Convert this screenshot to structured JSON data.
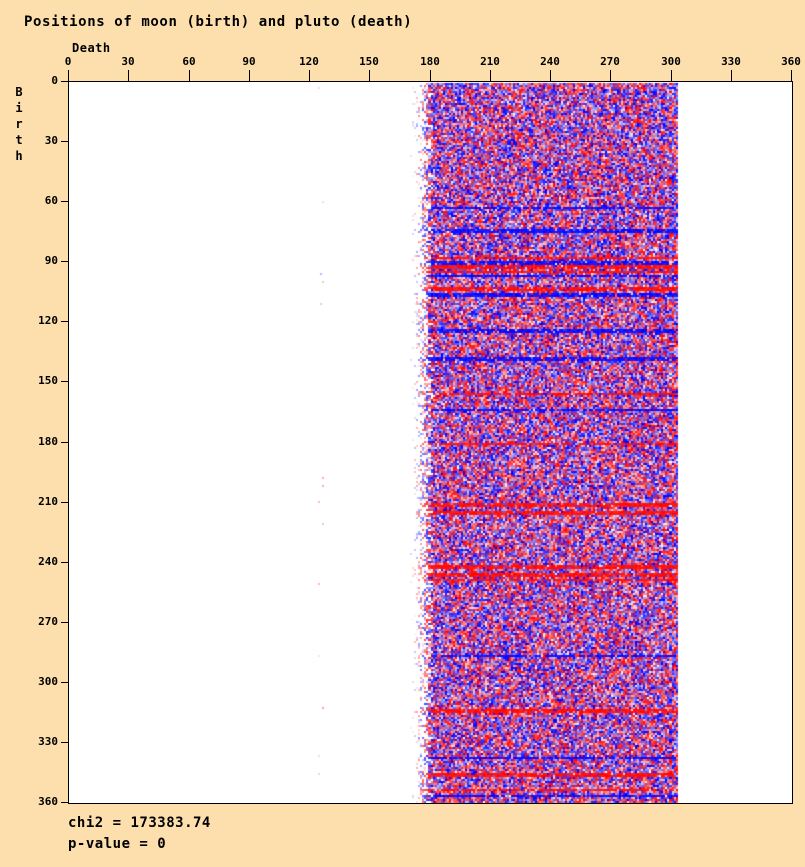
{
  "window": {
    "background": "#FCDFAD",
    "text_color": "#000000"
  },
  "chart_data": {
    "type": "heatmap",
    "title": "Positions of moon (birth) and pluto (death)",
    "xlabel": "Death",
    "ylabel": "Birth",
    "xlim": [
      0,
      360
    ],
    "ylim": [
      0,
      360
    ],
    "x_ticks": [
      0,
      30,
      60,
      90,
      120,
      150,
      180,
      210,
      240,
      270,
      300,
      330,
      360
    ],
    "y_ticks": [
      0,
      30,
      60,
      90,
      120,
      150,
      180,
      210,
      240,
      270,
      300,
      330,
      360
    ],
    "grid": false,
    "legend": "none",
    "plot_background": "#FFFFFF",
    "axis_color": "#000000",
    "colormap": {
      "zero": "#FFFFFF",
      "positive": "#FF0000",
      "negative": "#0000FF"
    },
    "cell_size_deg": 1,
    "data_band": {
      "fade_in_start_deg": 170,
      "full_density_deg": 181,
      "end_deg": 302,
      "description": "Dense random red/blue chi-square deviation cells covering all Birth values 0-360 for Death values ~175-302; density fades in on the left edge and cuts off sharply on the right edge. Occasional solid horizontal streak rows of saturated red or blue span the band."
    },
    "stray_dots": {
      "x_deg": 125,
      "approx_count": 14,
      "note": "sparse very pale pink (rarely pale blue) isolated cells near Death=125"
    },
    "streak_rows": {
      "probability": 0.08,
      "double_row_probability": 0.3
    },
    "render_seed": 1337,
    "annotations": [
      {
        "text": "chi2 = 173383.74"
      },
      {
        "text": "p-value = 0"
      }
    ],
    "stats": {
      "chi2": 173383.74,
      "p_value": 0
    }
  }
}
